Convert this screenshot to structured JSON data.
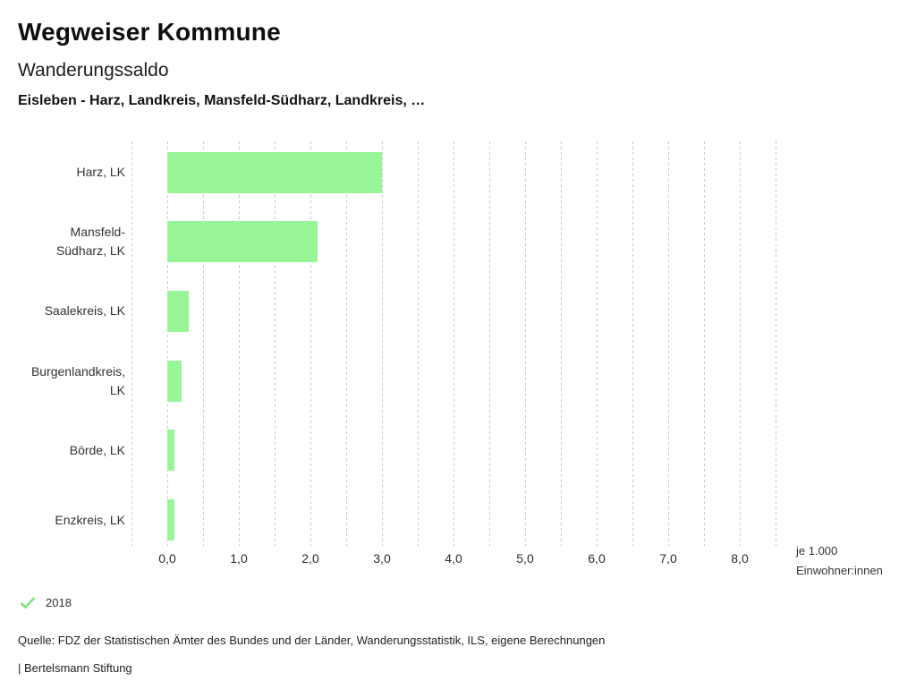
{
  "header": {
    "app_title": "Wegweiser Kommune",
    "chart_title": "Wanderungssaldo",
    "chart_subtitle": "Eisleben - Harz, Landkreis, Mansfeld-Südharz, Landkreis, …"
  },
  "chart_data": {
    "type": "bar",
    "orientation": "horizontal",
    "title": "Wanderungssaldo",
    "subtitle": "Eisleben - Harz, Landkreis, Mansfeld-Südharz, Landkreis, …",
    "categories": [
      "Harz, LK",
      "Mansfeld-Südharz, LK",
      "Saalekreis, LK",
      "Burgenlandkreis, LK",
      "Börde, LK",
      "Enzkreis, LK"
    ],
    "series": [
      {
        "name": "2018",
        "values": [
          3.0,
          2.1,
          0.3,
          0.2,
          0.1,
          0.1
        ]
      }
    ],
    "xlabel": "je 1.000 Einwohner:innen",
    "xlim": [
      -0.5,
      8.5
    ],
    "xticks": [
      0,
      1,
      2,
      3,
      4,
      5,
      6,
      7,
      8
    ],
    "xtick_labels": [
      "0,0",
      "1,0",
      "2,0",
      "3,0",
      "4,0",
      "5,0",
      "6,0",
      "7,0",
      "8,0"
    ],
    "grid": {
      "axis": "x",
      "minor_step": 0.5,
      "style": "dashed",
      "color": "#c9c9c9"
    },
    "bar_color": "#98f598",
    "legend_position": "bottom-left"
  },
  "legend": {
    "entries": [
      {
        "label": "2018",
        "marker": "check-icon",
        "color": "#7de57d"
      }
    ]
  },
  "source": "Quelle: FDZ der Statistischen Ämter des Bundes und der Länder, Wanderungsstatistik, ILS, eigene Berechnungen",
  "footer": "| Bertelsmann Stiftung"
}
